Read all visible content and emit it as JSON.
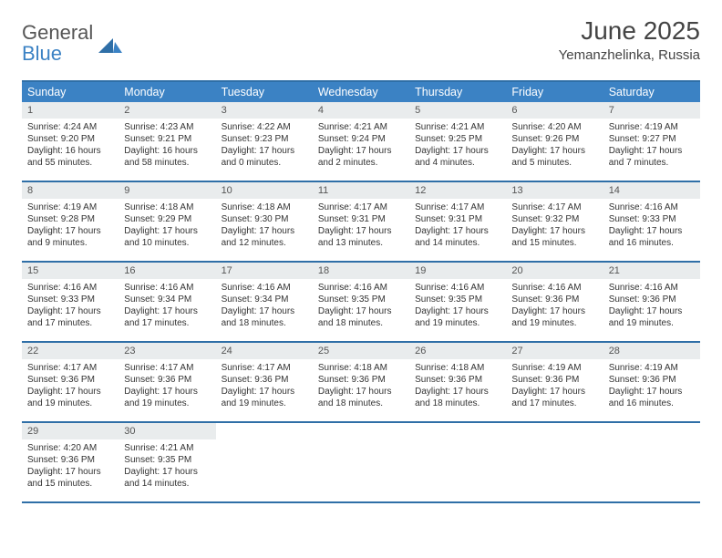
{
  "brand": {
    "part1": "General",
    "part2": "Blue"
  },
  "title": "June 2025",
  "subtitle": "Yemanzhelinka, Russia",
  "colors": {
    "header_bg": "#3b82c4",
    "header_border": "#2f6fa7",
    "daynum_bg": "#e9eced",
    "text": "#333333"
  },
  "day_names": [
    "Sunday",
    "Monday",
    "Tuesday",
    "Wednesday",
    "Thursday",
    "Friday",
    "Saturday"
  ],
  "weeks": [
    [
      {
        "n": "1",
        "sr": "Sunrise: 4:24 AM",
        "ss": "Sunset: 9:20 PM",
        "d1": "Daylight: 16 hours",
        "d2": "and 55 minutes."
      },
      {
        "n": "2",
        "sr": "Sunrise: 4:23 AM",
        "ss": "Sunset: 9:21 PM",
        "d1": "Daylight: 16 hours",
        "d2": "and 58 minutes."
      },
      {
        "n": "3",
        "sr": "Sunrise: 4:22 AM",
        "ss": "Sunset: 9:23 PM",
        "d1": "Daylight: 17 hours",
        "d2": "and 0 minutes."
      },
      {
        "n": "4",
        "sr": "Sunrise: 4:21 AM",
        "ss": "Sunset: 9:24 PM",
        "d1": "Daylight: 17 hours",
        "d2": "and 2 minutes."
      },
      {
        "n": "5",
        "sr": "Sunrise: 4:21 AM",
        "ss": "Sunset: 9:25 PM",
        "d1": "Daylight: 17 hours",
        "d2": "and 4 minutes."
      },
      {
        "n": "6",
        "sr": "Sunrise: 4:20 AM",
        "ss": "Sunset: 9:26 PM",
        "d1": "Daylight: 17 hours",
        "d2": "and 5 minutes."
      },
      {
        "n": "7",
        "sr": "Sunrise: 4:19 AM",
        "ss": "Sunset: 9:27 PM",
        "d1": "Daylight: 17 hours",
        "d2": "and 7 minutes."
      }
    ],
    [
      {
        "n": "8",
        "sr": "Sunrise: 4:19 AM",
        "ss": "Sunset: 9:28 PM",
        "d1": "Daylight: 17 hours",
        "d2": "and 9 minutes."
      },
      {
        "n": "9",
        "sr": "Sunrise: 4:18 AM",
        "ss": "Sunset: 9:29 PM",
        "d1": "Daylight: 17 hours",
        "d2": "and 10 minutes."
      },
      {
        "n": "10",
        "sr": "Sunrise: 4:18 AM",
        "ss": "Sunset: 9:30 PM",
        "d1": "Daylight: 17 hours",
        "d2": "and 12 minutes."
      },
      {
        "n": "11",
        "sr": "Sunrise: 4:17 AM",
        "ss": "Sunset: 9:31 PM",
        "d1": "Daylight: 17 hours",
        "d2": "and 13 minutes."
      },
      {
        "n": "12",
        "sr": "Sunrise: 4:17 AM",
        "ss": "Sunset: 9:31 PM",
        "d1": "Daylight: 17 hours",
        "d2": "and 14 minutes."
      },
      {
        "n": "13",
        "sr": "Sunrise: 4:17 AM",
        "ss": "Sunset: 9:32 PM",
        "d1": "Daylight: 17 hours",
        "d2": "and 15 minutes."
      },
      {
        "n": "14",
        "sr": "Sunrise: 4:16 AM",
        "ss": "Sunset: 9:33 PM",
        "d1": "Daylight: 17 hours",
        "d2": "and 16 minutes."
      }
    ],
    [
      {
        "n": "15",
        "sr": "Sunrise: 4:16 AM",
        "ss": "Sunset: 9:33 PM",
        "d1": "Daylight: 17 hours",
        "d2": "and 17 minutes."
      },
      {
        "n": "16",
        "sr": "Sunrise: 4:16 AM",
        "ss": "Sunset: 9:34 PM",
        "d1": "Daylight: 17 hours",
        "d2": "and 17 minutes."
      },
      {
        "n": "17",
        "sr": "Sunrise: 4:16 AM",
        "ss": "Sunset: 9:34 PM",
        "d1": "Daylight: 17 hours",
        "d2": "and 18 minutes."
      },
      {
        "n": "18",
        "sr": "Sunrise: 4:16 AM",
        "ss": "Sunset: 9:35 PM",
        "d1": "Daylight: 17 hours",
        "d2": "and 18 minutes."
      },
      {
        "n": "19",
        "sr": "Sunrise: 4:16 AM",
        "ss": "Sunset: 9:35 PM",
        "d1": "Daylight: 17 hours",
        "d2": "and 19 minutes."
      },
      {
        "n": "20",
        "sr": "Sunrise: 4:16 AM",
        "ss": "Sunset: 9:36 PM",
        "d1": "Daylight: 17 hours",
        "d2": "and 19 minutes."
      },
      {
        "n": "21",
        "sr": "Sunrise: 4:16 AM",
        "ss": "Sunset: 9:36 PM",
        "d1": "Daylight: 17 hours",
        "d2": "and 19 minutes."
      }
    ],
    [
      {
        "n": "22",
        "sr": "Sunrise: 4:17 AM",
        "ss": "Sunset: 9:36 PM",
        "d1": "Daylight: 17 hours",
        "d2": "and 19 minutes."
      },
      {
        "n": "23",
        "sr": "Sunrise: 4:17 AM",
        "ss": "Sunset: 9:36 PM",
        "d1": "Daylight: 17 hours",
        "d2": "and 19 minutes."
      },
      {
        "n": "24",
        "sr": "Sunrise: 4:17 AM",
        "ss": "Sunset: 9:36 PM",
        "d1": "Daylight: 17 hours",
        "d2": "and 19 minutes."
      },
      {
        "n": "25",
        "sr": "Sunrise: 4:18 AM",
        "ss": "Sunset: 9:36 PM",
        "d1": "Daylight: 17 hours",
        "d2": "and 18 minutes."
      },
      {
        "n": "26",
        "sr": "Sunrise: 4:18 AM",
        "ss": "Sunset: 9:36 PM",
        "d1": "Daylight: 17 hours",
        "d2": "and 18 minutes."
      },
      {
        "n": "27",
        "sr": "Sunrise: 4:19 AM",
        "ss": "Sunset: 9:36 PM",
        "d1": "Daylight: 17 hours",
        "d2": "and 17 minutes."
      },
      {
        "n": "28",
        "sr": "Sunrise: 4:19 AM",
        "ss": "Sunset: 9:36 PM",
        "d1": "Daylight: 17 hours",
        "d2": "and 16 minutes."
      }
    ],
    [
      {
        "n": "29",
        "sr": "Sunrise: 4:20 AM",
        "ss": "Sunset: 9:36 PM",
        "d1": "Daylight: 17 hours",
        "d2": "and 15 minutes."
      },
      {
        "n": "30",
        "sr": "Sunrise: 4:21 AM",
        "ss": "Sunset: 9:35 PM",
        "d1": "Daylight: 17 hours",
        "d2": "and 14 minutes."
      },
      {
        "empty": true
      },
      {
        "empty": true
      },
      {
        "empty": true
      },
      {
        "empty": true
      },
      {
        "empty": true
      }
    ]
  ]
}
